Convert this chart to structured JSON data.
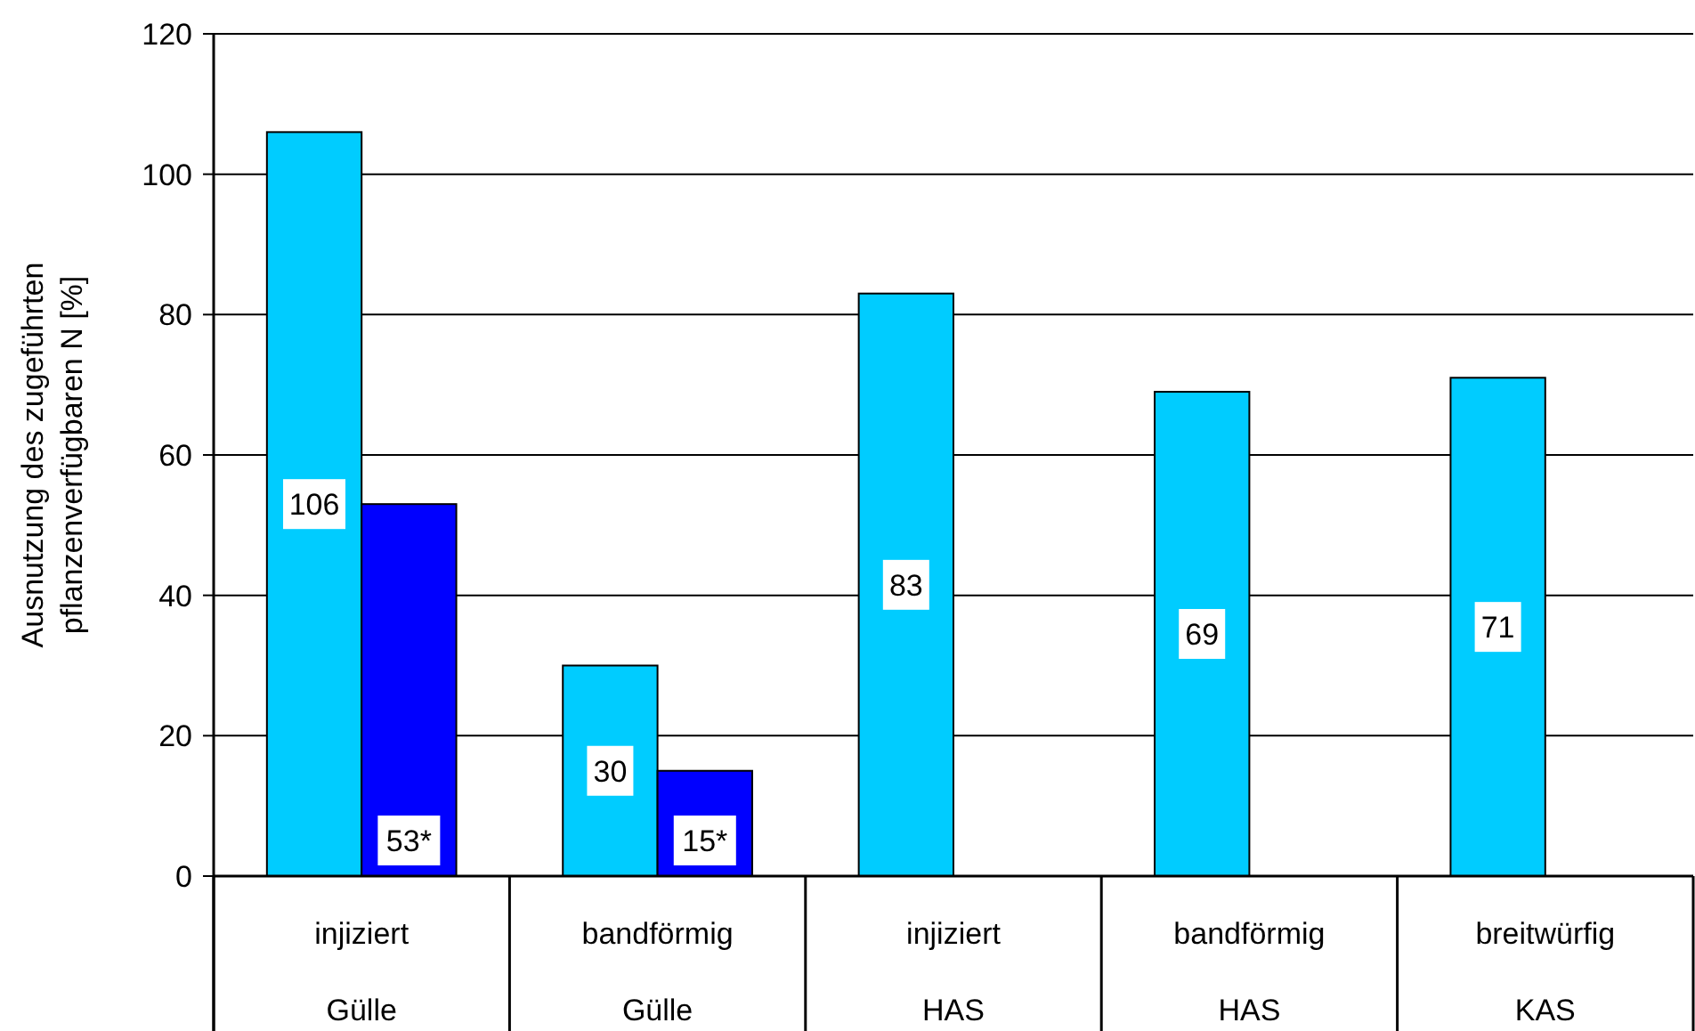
{
  "chart_data": {
    "type": "bar",
    "ylabel": "Ausnutzung des zugeführten\npflanzenverfügbaren N [%]",
    "categories": [
      "injiziert\nGülle",
      "bandförmig\nGülle",
      "injiziert\nHAS",
      "bandförmig\nHAS",
      "breitwürfig\nKAS"
    ],
    "series": [
      {
        "color": "#00ccff",
        "values": [
          106,
          30,
          83,
          69,
          71
        ],
        "value_labels": [
          "106",
          "30",
          "83",
          "69",
          "71"
        ]
      },
      {
        "color": "#0000ff",
        "values": [
          53,
          15,
          null,
          null,
          null
        ],
        "value_labels": [
          "53*",
          "15*",
          null,
          null,
          null
        ]
      }
    ],
    "ylim": [
      0,
      120
    ],
    "yticks": [
      0,
      20,
      40,
      60,
      80,
      100,
      120
    ],
    "grid": "y"
  }
}
